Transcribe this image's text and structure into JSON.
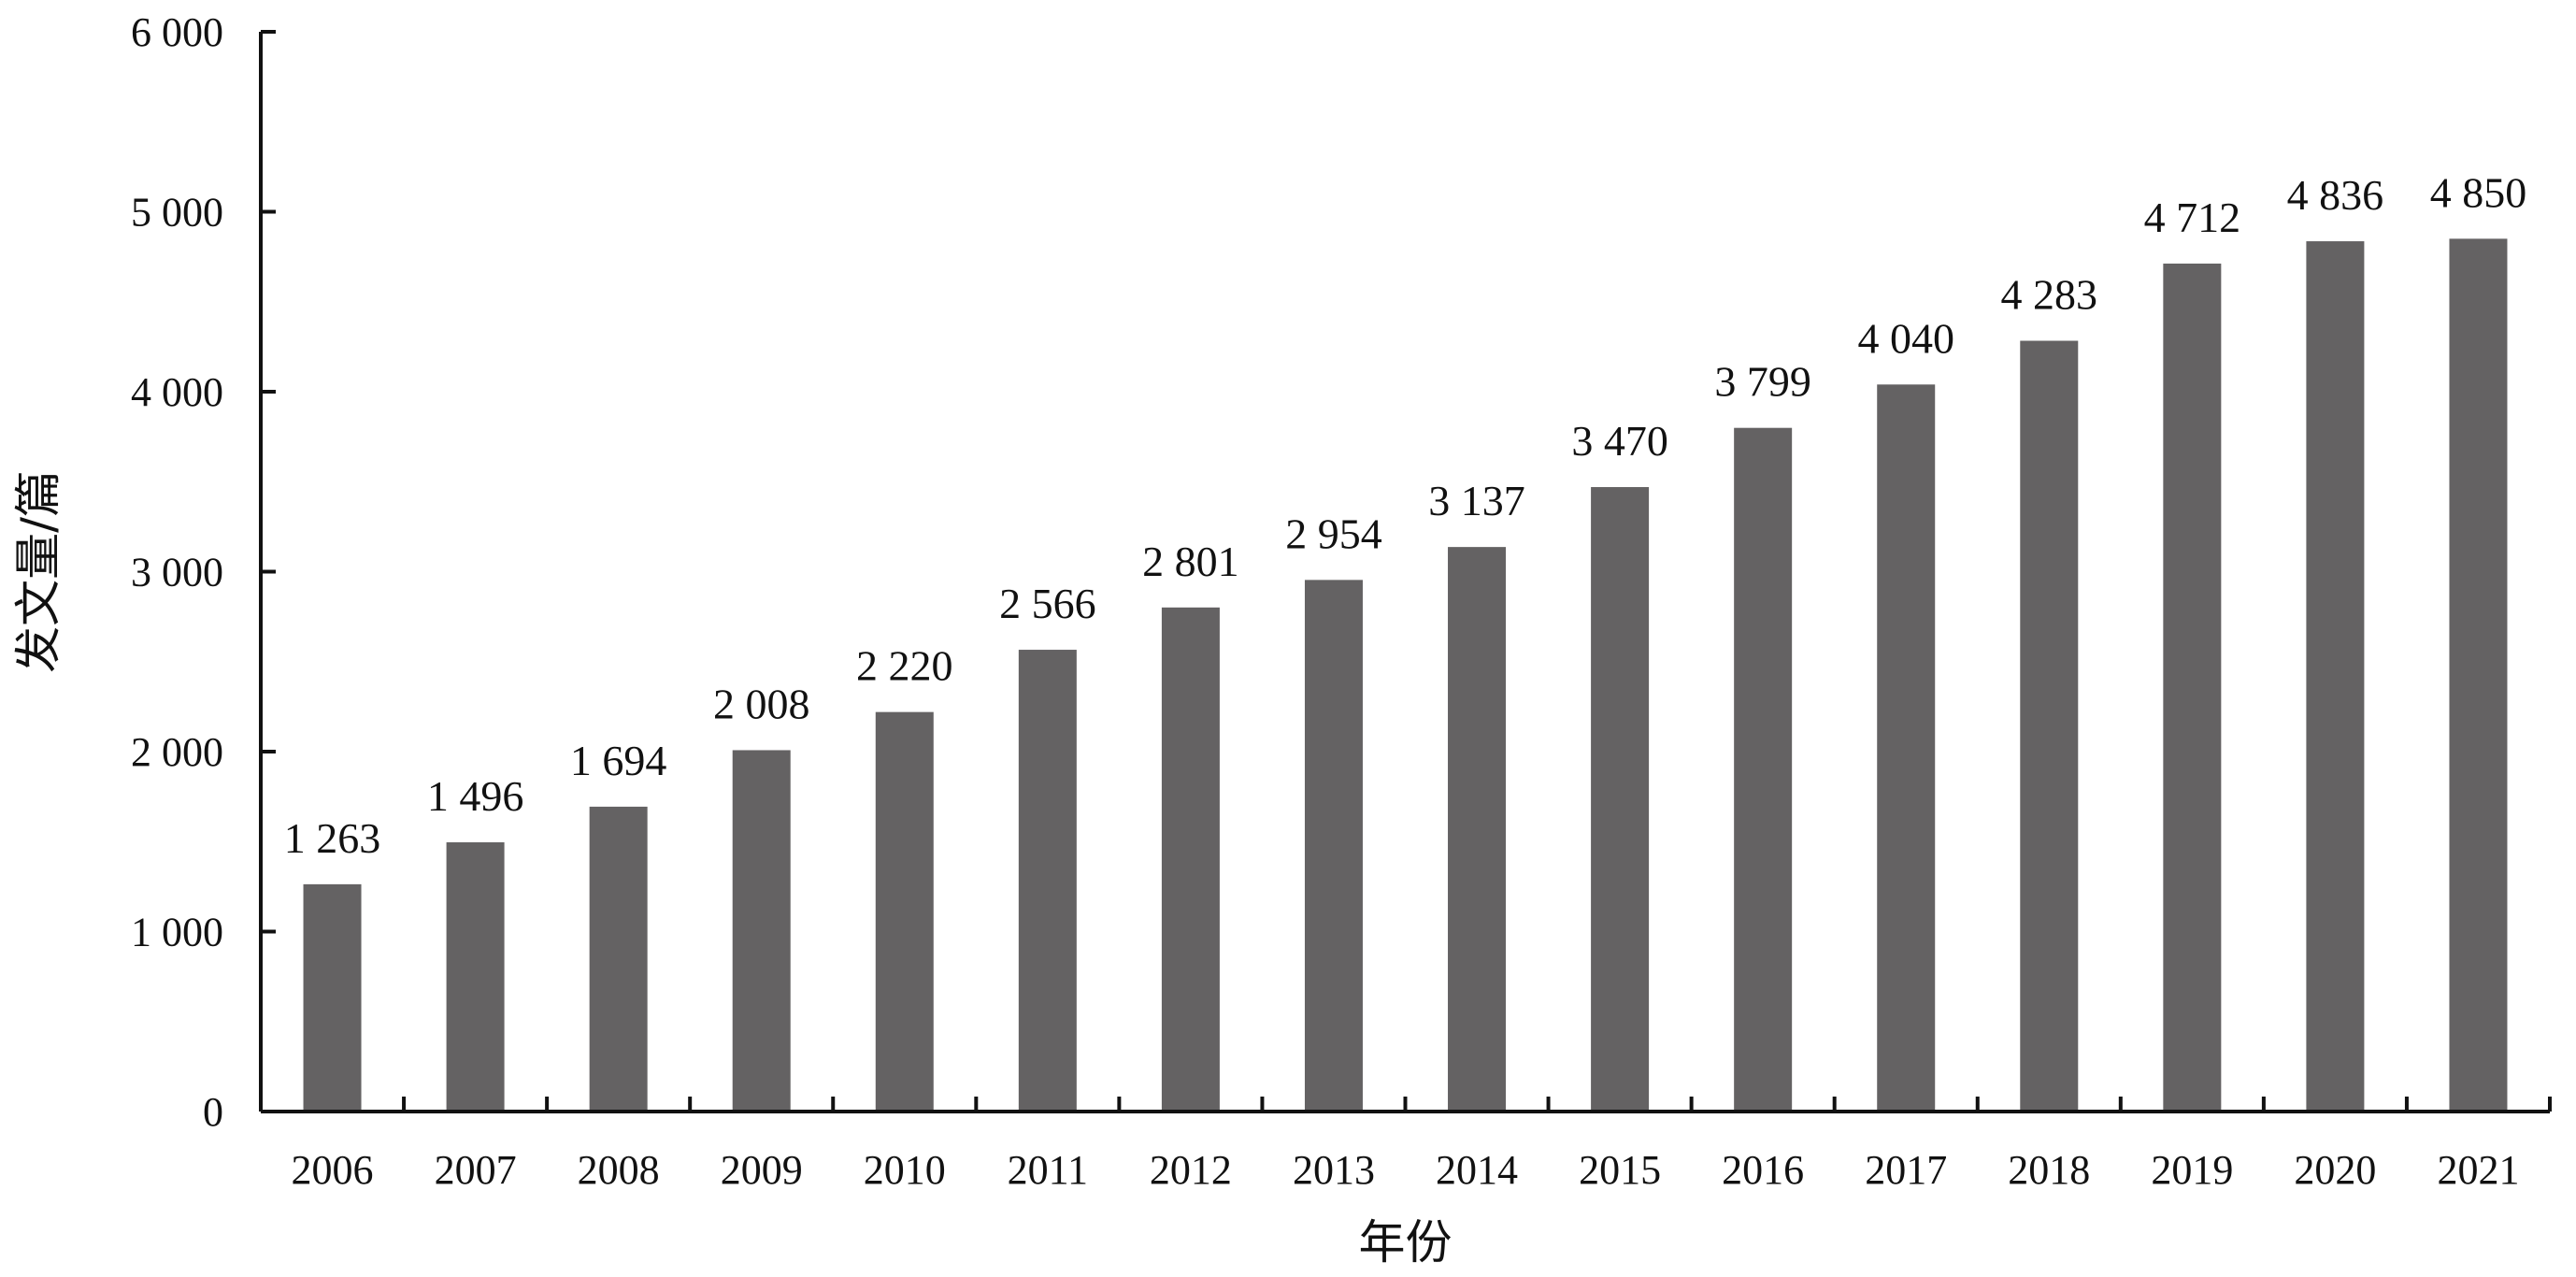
{
  "chart_data": {
    "type": "bar",
    "categories": [
      "2006",
      "2007",
      "2008",
      "2009",
      "2010",
      "2011",
      "2012",
      "2013",
      "2014",
      "2015",
      "2016",
      "2017",
      "2018",
      "2019",
      "2020",
      "2021"
    ],
    "values": [
      1263,
      1496,
      1694,
      2008,
      2220,
      2566,
      2801,
      2954,
      3137,
      3470,
      3799,
      4040,
      4283,
      4712,
      4836,
      4850
    ],
    "data_labels": [
      "1 263",
      "1 496",
      "1 694",
      "2 008",
      "2 220",
      "2 566",
      "2 801",
      "2 954",
      "3 137",
      "3 470",
      "3 799",
      "4 040",
      "4 283",
      "4 712",
      "4 836",
      "4 850"
    ],
    "y_ticks": [
      0,
      1000,
      2000,
      3000,
      4000,
      5000,
      6000
    ],
    "y_tick_labels": [
      "0",
      "1 000",
      "2 000",
      "3 000",
      "4 000",
      "5 000",
      "6 000"
    ],
    "xlabel": "年份",
    "ylabel": "发文量/篇",
    "ylim": [
      0,
      6000
    ],
    "grid": false,
    "bar_color": "#646263"
  }
}
